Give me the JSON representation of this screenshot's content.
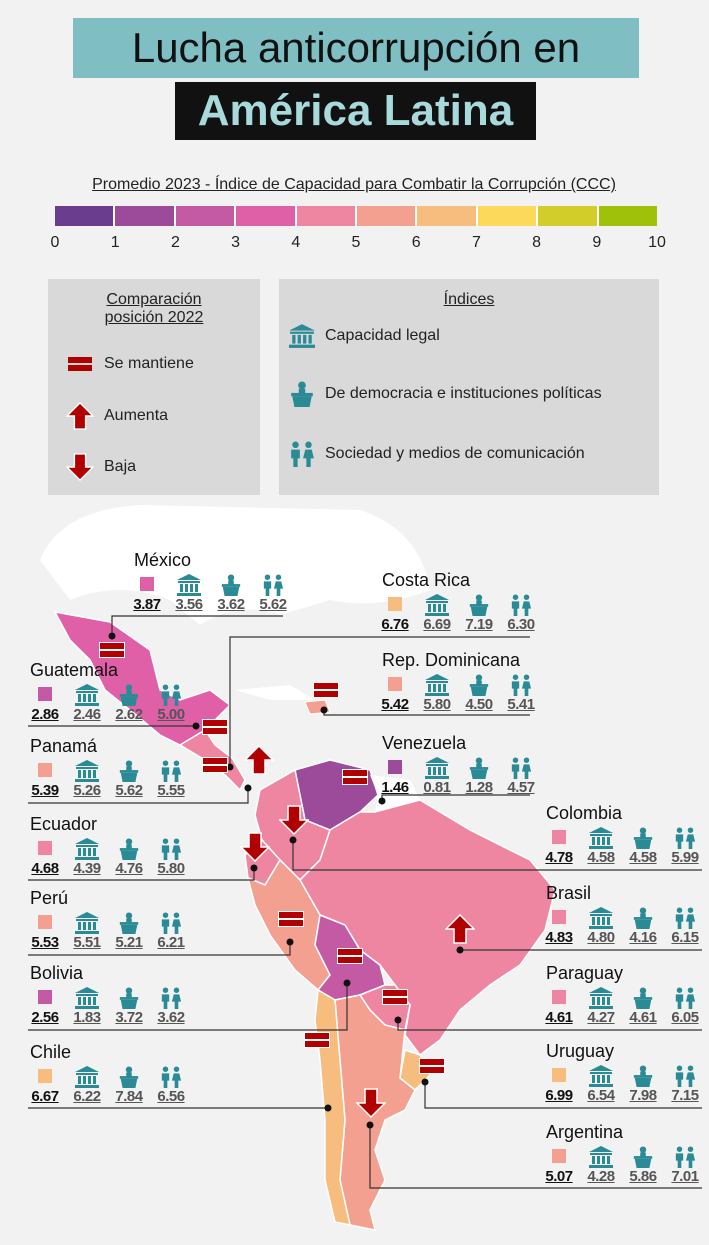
{
  "title": {
    "line1": "Lucha anticorrupción en",
    "line2": "América Latina"
  },
  "scale": {
    "title": "Promedio 2023 - Índice de Capacidad para Combatir la Corrupción  (CCC)",
    "ticks": [
      "0",
      "1",
      "2",
      "3",
      "4",
      "5",
      "6",
      "7",
      "8",
      "9",
      "10"
    ],
    "colors": [
      "#6a3d8f",
      "#9b4b9a",
      "#c45aa4",
      "#e060a8",
      "#ee86a2",
      "#f3a090",
      "#f7bd7e",
      "#fcd95a",
      "#d2cd28",
      "#9fc10a"
    ]
  },
  "legend_position": {
    "title": "Comparación posición 2022",
    "items": [
      "Se mantiene",
      "Aumenta",
      "Baja"
    ]
  },
  "legend_indices": {
    "title": "Índices",
    "items": [
      "Capacidad legal",
      "De democracia e instituciones políticas",
      "Sociedad y medios de comunicación"
    ]
  },
  "countries": [
    {
      "name": "México",
      "color": "#e060a8",
      "ccc": "3.87",
      "legal": "3.56",
      "demo": "3.62",
      "soc": "5.62"
    },
    {
      "name": "Guatemala",
      "color": "#c45aa4",
      "ccc": "2.86",
      "legal": "2.46",
      "demo": "2.62",
      "soc": "5.00"
    },
    {
      "name": "Panamá",
      "color": "#f3a090",
      "ccc": "5.39",
      "legal": "5.26",
      "demo": "5.62",
      "soc": "5.55"
    },
    {
      "name": "Ecuador",
      "color": "#ee86a2",
      "ccc": "4.68",
      "legal": "4.39",
      "demo": "4.76",
      "soc": "5.80"
    },
    {
      "name": "Perú",
      "color": "#f3a090",
      "ccc": "5.53",
      "legal": "5.51",
      "demo": "5.21",
      "soc": "6.21"
    },
    {
      "name": "Bolivia",
      "color": "#c45aa4",
      "ccc": "2.56",
      "legal": "1.83",
      "demo": "3.72",
      "soc": "3.62"
    },
    {
      "name": "Chile",
      "color": "#f7bd7e",
      "ccc": "6.67",
      "legal": "6.22",
      "demo": "7.84",
      "soc": "6.56"
    },
    {
      "name": "Costa Rica",
      "color": "#f7bd7e",
      "ccc": "6.76",
      "legal": "6.69",
      "demo": "7.19",
      "soc": "6.30"
    },
    {
      "name": "Rep. Dominicana",
      "color": "#f3a090",
      "ccc": "5.42",
      "legal": "5.80",
      "demo": "4.50",
      "soc": "5.41"
    },
    {
      "name": "Venezuela",
      "color": "#9b4b9a",
      "ccc": "1.46",
      "legal": "0.81",
      "demo": "1.28",
      "soc": "4.57"
    },
    {
      "name": "Colombia",
      "color": "#ee86a2",
      "ccc": "4.78",
      "legal": "4.58",
      "demo": "4.58",
      "soc": "5.99"
    },
    {
      "name": "Brasil",
      "color": "#ee86a2",
      "ccc": "4.83",
      "legal": "4.80",
      "demo": "4.16",
      "soc": "6.15"
    },
    {
      "name": "Paraguay",
      "color": "#ee86a2",
      "ccc": "4.61",
      "legal": "4.27",
      "demo": "4.61",
      "soc": "6.05"
    },
    {
      "name": "Uruguay",
      "color": "#f7bd7e",
      "ccc": "6.99",
      "legal": "6.54",
      "demo": "7.98",
      "soc": "7.15"
    },
    {
      "name": "Argentina",
      "color": "#f3a090",
      "ccc": "5.07",
      "legal": "4.28",
      "demo": "5.86",
      "soc": "7.01"
    }
  ]
}
